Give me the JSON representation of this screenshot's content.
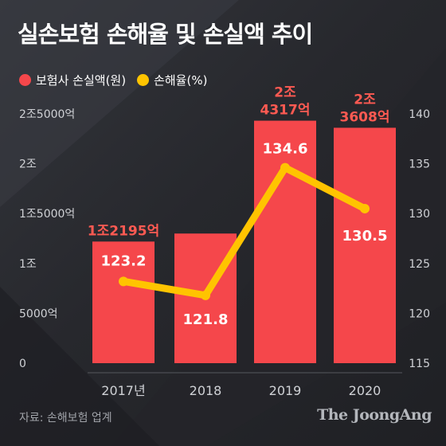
{
  "title": "실손보험 손해율 및 손실액 추이",
  "source": "자료: 손해보험 업계",
  "logo": "The JoongAng",
  "colors": {
    "bar": "#f5474b",
    "line": "#ffc400",
    "bar_label": "#ff5a52",
    "text": "#ffffff",
    "axis": "#cfd1d5"
  },
  "chart_data": {
    "type": "bar",
    "categories": [
      "2017년",
      "2018",
      "2019",
      "2020"
    ],
    "series": [
      {
        "name": "보험사 손실액(원)",
        "type": "bar",
        "axis": "left",
        "unit": "억원",
        "values": [
          12195,
          13000,
          24317,
          23608
        ],
        "labels": [
          "1조2195억",
          "",
          "2조\n4317억",
          "2조\n3608억"
        ]
      },
      {
        "name": "손해율(%)",
        "type": "line",
        "axis": "right",
        "unit": "%",
        "values": [
          123.2,
          121.8,
          134.6,
          130.5
        ],
        "labels": [
          "123.2",
          "121.8",
          "134.6",
          "130.5"
        ]
      }
    ],
    "y_left": {
      "min": 0,
      "max": 25000,
      "ticks": [
        0,
        5000,
        10000,
        15000,
        20000,
        25000
      ],
      "tick_labels": [
        "0",
        "5000억",
        "1조",
        "1조5000억",
        "2조",
        "2조5000억"
      ]
    },
    "y_right": {
      "min": 115,
      "max": 140,
      "ticks": [
        115,
        120,
        125,
        130,
        135,
        140
      ]
    },
    "legend_position": "top-left",
    "grid": false
  }
}
